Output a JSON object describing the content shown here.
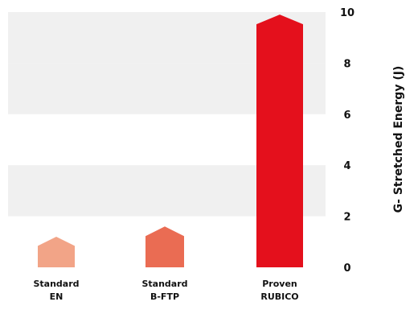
{
  "chart_data": {
    "type": "bar",
    "categories": [
      [
        "Standard",
        "EN"
      ],
      [
        "Standard",
        "B-FTP"
      ],
      [
        "Proven",
        "RUBICO"
      ]
    ],
    "values": [
      1.2,
      1.6,
      9.9
    ],
    "colors": [
      "#f2a487",
      "#ea6c53",
      "#e4101c"
    ],
    "ylabel": "G- Stretched Energy (J)",
    "ylim": [
      0,
      10
    ],
    "yticks": [
      0,
      2,
      4,
      6,
      8,
      10
    ],
    "grid": "alternating horizontal bands",
    "band_color": "#f0f0f0",
    "y_axis_position": "right"
  }
}
